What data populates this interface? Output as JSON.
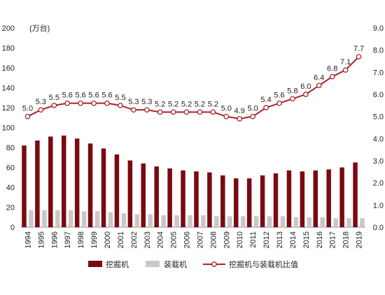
{
  "chart_data": {
    "type": "bar+line",
    "unit_label": "(万台)",
    "categories": [
      "1994",
      "1995",
      "1996",
      "1997",
      "1998",
      "1999",
      "2000",
      "2001",
      "2002",
      "2003",
      "2004",
      "2005",
      "2006",
      "2007",
      "2008",
      "2009",
      "2010",
      "2011",
      "2012",
      "2013",
      "2014",
      "2015",
      "2016",
      "2017",
      "2018",
      "2019"
    ],
    "left_axis": {
      "min": 0,
      "max": 200,
      "ticks": [
        0,
        20,
        40,
        60,
        80,
        100,
        120,
        140,
        160,
        180,
        200
      ]
    },
    "right_axis": {
      "min": 0,
      "max": 9,
      "ticks": [
        "0.0",
        "1.0",
        "2.0",
        "3.0",
        "4.0",
        "5.0",
        "6.0",
        "7.0",
        "8.0",
        "9.0"
      ]
    },
    "series": [
      {
        "name": "挖掘机",
        "kind": "bar",
        "axis": "left",
        "color": "#7a0a12",
        "values": [
          82,
          87,
          91,
          92,
          89,
          84,
          79,
          73,
          67,
          64,
          61,
          59,
          57,
          56,
          55,
          52,
          49,
          49,
          52,
          54,
          57,
          56,
          57,
          58,
          60,
          65
        ]
      },
      {
        "name": "装载机",
        "kind": "bar",
        "axis": "left",
        "color": "#c8c8c8",
        "values": [
          17,
          17,
          17,
          17,
          16,
          16,
          15,
          14,
          13,
          13,
          12,
          12,
          12,
          12,
          11,
          11,
          11,
          11,
          11,
          11,
          10,
          10,
          10,
          9,
          9,
          9
        ]
      },
      {
        "name": "挖掘机与装载机比值",
        "kind": "line",
        "axis": "right",
        "color": "#a8232b",
        "values": [
          5.0,
          5.3,
          5.5,
          5.6,
          5.6,
          5.6,
          5.6,
          5.5,
          5.3,
          5.3,
          5.2,
          5.2,
          5.2,
          5.2,
          5.2,
          5.0,
          4.9,
          5.0,
          5.4,
          5.6,
          5.8,
          6.0,
          6.4,
          6.8,
          7.1,
          7.7
        ],
        "labels": [
          "5.0",
          "5.3",
          "5.5",
          "5.6",
          "5.6",
          "5.6",
          "5.6",
          "5.5",
          "5.3",
          "5.3",
          "5.2",
          "5.2",
          "5.2",
          "5.2",
          "5.2",
          "5.0",
          "4.9",
          "5.0",
          "5.4",
          "5.6",
          "5.8",
          "6.0",
          "6.4",
          "6.8",
          "7.1",
          "7.7"
        ]
      }
    ],
    "grid": false,
    "legend_position": "bottom"
  }
}
